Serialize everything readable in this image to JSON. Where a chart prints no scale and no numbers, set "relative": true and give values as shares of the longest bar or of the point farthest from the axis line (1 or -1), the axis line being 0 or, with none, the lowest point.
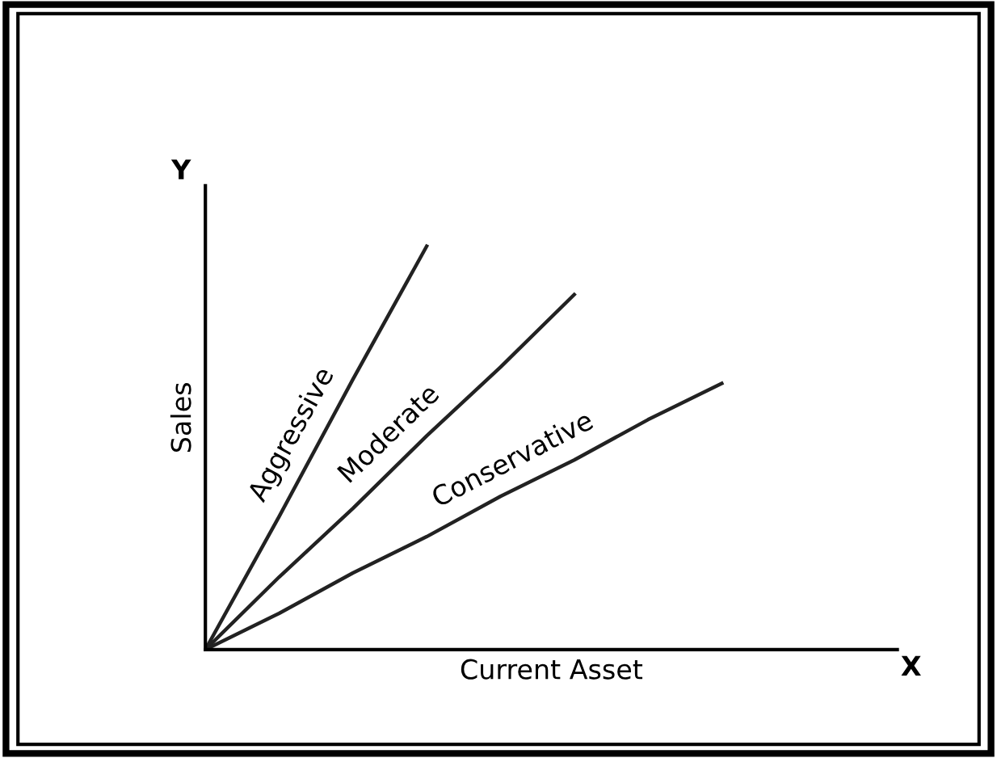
{
  "chart_data": {
    "type": "line",
    "relative": true,
    "xlabel": "Current Asset",
    "ylabel": "Sales",
    "annotations": [
      "Y",
      "X"
    ],
    "categories": [
      null,
      null,
      null,
      null,
      null,
      null,
      null,
      null
    ],
    "series": [
      {
        "name": "Aggressive",
        "color": "#222222",
        "values": [
          0,
          0.33,
          0.67,
          1.0,
          null,
          null,
          null,
          null
        ]
      },
      {
        "name": "Moderate",
        "color": "#222222",
        "values": [
          0,
          0.18,
          0.35,
          0.53,
          0.7,
          0.88,
          null,
          null
        ]
      },
      {
        "name": "Conservative",
        "color": "#222222",
        "values": [
          0,
          0.09,
          0.19,
          0.28,
          0.38,
          0.47,
          0.57,
          0.66
        ]
      }
    ],
    "legend": false,
    "marker": "none",
    "line_style": "solid",
    "tick_labels": false
  }
}
